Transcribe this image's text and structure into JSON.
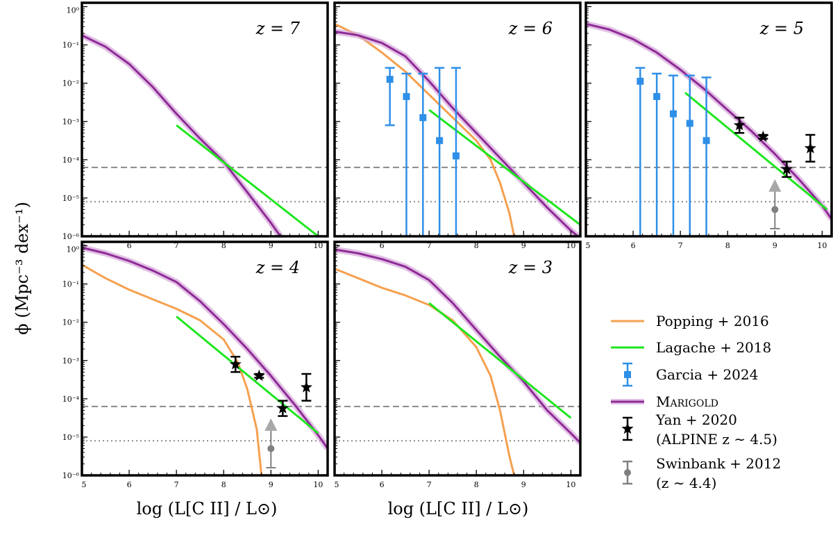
{
  "figure": {
    "ylabel": "ϕ (Mpc⁻³ dex⁻¹)",
    "xlabel": "log (L[C II] / L⊙)"
  },
  "legend": [
    {
      "key": "popping",
      "label": "Popping + 2016",
      "style": "line",
      "color": "#F5A04F"
    },
    {
      "key": "lagache",
      "label": "Lagache + 2018",
      "style": "line",
      "color": "#1EE61E"
    },
    {
      "key": "garcia",
      "label": "Garcia + 2024",
      "style": "errsquare",
      "color": "#2E8FE8"
    },
    {
      "key": "marigold",
      "label": "Marigold",
      "style": "line",
      "color": "#8E2A96"
    },
    {
      "key": "yan",
      "label": "Yan + 2020",
      "label2": "(ALPINE z ∼ 4.5)",
      "style": "errstar",
      "color": "#000000"
    },
    {
      "key": "swinbank",
      "label": "Swinbank + 2012",
      "label2": "(z ∼ 4.4)",
      "style": "errcircle",
      "color": "#808080"
    }
  ],
  "chart_data": [
    {
      "type": "line",
      "panel": "z7",
      "zlabel": "z = 7",
      "xlim": [
        5,
        10.2
      ],
      "ylim_log10": [
        -6,
        0.1
      ],
      "xticks": [
        "5",
        "6",
        "7",
        "8",
        "9",
        "10"
      ],
      "yticks": [
        "10⁻⁶",
        "10⁻⁵",
        "10⁻⁴",
        "10⁻³",
        "10⁻²",
        "10⁻¹",
        "10⁰"
      ],
      "hline_dashed": 6.3e-05,
      "hline_dotted": 8e-06,
      "series": [
        {
          "name": "Marigold",
          "x": [
            5.0,
            5.5,
            6.0,
            6.5,
            7.0,
            7.5,
            8.0,
            8.5,
            9.0,
            9.2
          ],
          "log10_y": [
            -0.75,
            -1.05,
            -1.5,
            -2.1,
            -2.8,
            -3.45,
            -4.05,
            -4.85,
            -5.65,
            -6.0
          ]
        },
        {
          "name": "Lagache + 2018",
          "x": [
            7.0,
            10.0
          ],
          "log10_y": [
            -3.1,
            -6.0
          ]
        }
      ],
      "points": []
    },
    {
      "type": "line",
      "panel": "z6",
      "zlabel": "z = 6",
      "xlim": [
        5,
        10.2
      ],
      "ylim_log10": [
        -6,
        0.1
      ],
      "xticks": [
        "5",
        "6",
        "7",
        "8",
        "9",
        "10"
      ],
      "yticks": [],
      "hline_dashed": 6.3e-05,
      "hline_dotted": 8e-06,
      "series": [
        {
          "name": "Popping + 2016",
          "x": [
            5.0,
            5.5,
            6.0,
            6.5,
            7.0,
            7.5,
            8.0,
            8.3,
            8.5,
            8.7,
            8.8
          ],
          "log10_y": [
            -0.45,
            -0.75,
            -1.2,
            -1.7,
            -2.3,
            -2.9,
            -3.5,
            -4.0,
            -4.6,
            -5.4,
            -6.0
          ]
        },
        {
          "name": "Marigold",
          "x": [
            5.0,
            5.5,
            6.0,
            6.5,
            7.0,
            7.5,
            8.0,
            8.5,
            9.0,
            9.5,
            10.0,
            10.2
          ],
          "log10_y": [
            -0.65,
            -0.75,
            -0.95,
            -1.3,
            -1.95,
            -2.65,
            -3.3,
            -3.95,
            -4.6,
            -5.25,
            -5.85,
            -6.05
          ]
        },
        {
          "name": "Lagache + 2018",
          "x": [
            7.0,
            10.2
          ],
          "log10_y": [
            -2.7,
            -5.7
          ]
        }
      ],
      "points": [
        {
          "name": "Garcia + 2024",
          "marker": "square",
          "x": 6.17,
          "log10_y": -1.9,
          "lo": -3.1,
          "hi": -1.6
        },
        {
          "name": "Garcia + 2024",
          "marker": "square",
          "x": 6.52,
          "log10_y": -2.35,
          "lo": -6.0,
          "hi": -1.75
        },
        {
          "name": "Garcia + 2024",
          "marker": "square",
          "x": 6.87,
          "log10_y": -2.9,
          "lo": -6.0,
          "hi": -1.75
        },
        {
          "name": "Garcia + 2024",
          "marker": "square",
          "x": 7.22,
          "log10_y": -3.5,
          "lo": -6.0,
          "hi": -1.6
        },
        {
          "name": "Garcia + 2024",
          "marker": "square",
          "x": 7.57,
          "log10_y": -3.9,
          "lo": -6.0,
          "hi": -1.6
        }
      ]
    },
    {
      "type": "line",
      "panel": "z5",
      "zlabel": "z = 5",
      "xlim": [
        5,
        10.2
      ],
      "ylim_log10": [
        -6,
        0.1
      ],
      "xticks": [
        "5",
        "6",
        "7",
        "8",
        "9",
        "10"
      ],
      "yticks": [],
      "hline_dashed": 6.3e-05,
      "hline_dotted": 8e-06,
      "series": [
        {
          "name": "Marigold",
          "x": [
            5.0,
            5.5,
            6.0,
            6.5,
            7.0,
            7.5,
            8.0,
            8.5,
            9.0,
            9.5,
            10.0,
            10.2
          ],
          "log10_y": [
            -0.45,
            -0.6,
            -0.85,
            -1.2,
            -1.65,
            -2.15,
            -2.7,
            -3.25,
            -3.85,
            -4.5,
            -5.2,
            -5.55
          ]
        },
        {
          "name": "Lagache + 2018",
          "x": [
            7.1,
            10.1
          ],
          "log10_y": [
            -2.25,
            -5.3
          ]
        }
      ],
      "points": [
        {
          "name": "Garcia + 2024",
          "marker": "square",
          "x": 6.15,
          "log10_y": -1.95,
          "lo": -6.0,
          "hi": -1.6
        },
        {
          "name": "Garcia + 2024",
          "marker": "square",
          "x": 6.5,
          "log10_y": -2.35,
          "lo": -6.0,
          "hi": -1.75
        },
        {
          "name": "Garcia + 2024",
          "marker": "square",
          "x": 6.85,
          "log10_y": -2.8,
          "lo": -6.0,
          "hi": -1.8
        },
        {
          "name": "Garcia + 2024",
          "marker": "square",
          "x": 7.2,
          "log10_y": -3.05,
          "lo": -6.0,
          "hi": -1.8
        },
        {
          "name": "Garcia + 2024",
          "marker": "square",
          "x": 7.55,
          "log10_y": -3.5,
          "lo": -6.0,
          "hi": -1.85
        },
        {
          "name": "Yan + 2020",
          "marker": "star",
          "x": 8.25,
          "log10_y": -3.1,
          "lo": -3.3,
          "hi": -2.9
        },
        {
          "name": "Yan + 2020",
          "marker": "star",
          "x": 8.75,
          "log10_y": -3.4,
          "lo": -3.45,
          "hi": -3.35
        },
        {
          "name": "Yan + 2020",
          "marker": "star",
          "x": 9.25,
          "log10_y": -4.25,
          "lo": -4.45,
          "hi": -4.05
        },
        {
          "name": "Yan + 2020",
          "marker": "star",
          "x": 9.75,
          "log10_y": -3.7,
          "lo": -4.05,
          "hi": -3.35
        },
        {
          "name": "Swinbank + 2012",
          "marker": "circle",
          "x": 9.0,
          "log10_y": -5.3,
          "lo": -5.8,
          "hi": -4.8,
          "lower_limit": true
        }
      ]
    },
    {
      "type": "line",
      "panel": "z4",
      "zlabel": "z = 4",
      "xlim": [
        5,
        10.2
      ],
      "ylim_log10": [
        -6,
        0.1
      ],
      "xticks": [
        "5",
        "6",
        "7",
        "8",
        "9",
        "10"
      ],
      "yticks": [
        "10⁻⁶",
        "10⁻⁵",
        "10⁻⁴",
        "10⁻³",
        "10⁻²",
        "10⁻¹",
        "10⁰"
      ],
      "hline_dashed": 6.3e-05,
      "hline_dotted": 8e-06,
      "series": [
        {
          "name": "Popping + 2016",
          "x": [
            5.0,
            5.5,
            6.0,
            6.5,
            7.0,
            7.5,
            8.0,
            8.3,
            8.5,
            8.7,
            8.8
          ],
          "log10_y": [
            -0.5,
            -0.85,
            -1.15,
            -1.4,
            -1.65,
            -1.95,
            -2.45,
            -3.05,
            -3.75,
            -4.8,
            -6.0
          ]
        },
        {
          "name": "Marigold",
          "x": [
            5.0,
            5.5,
            6.0,
            6.5,
            7.0,
            7.5,
            8.0,
            8.5,
            9.0,
            9.5,
            10.0,
            10.2
          ],
          "log10_y": [
            -0.05,
            -0.2,
            -0.4,
            -0.65,
            -0.95,
            -1.45,
            -2.05,
            -2.7,
            -3.4,
            -4.15,
            -4.95,
            -5.3
          ]
        },
        {
          "name": "Lagache + 2018",
          "x": [
            7.0,
            10.0
          ],
          "log10_y": [
            -1.85,
            -4.9
          ]
        }
      ],
      "points": [
        {
          "name": "Yan + 2020",
          "marker": "star",
          "x": 8.25,
          "log10_y": -3.1,
          "lo": -3.3,
          "hi": -2.9
        },
        {
          "name": "Yan + 2020",
          "marker": "star",
          "x": 8.75,
          "log10_y": -3.4,
          "lo": -3.45,
          "hi": -3.35
        },
        {
          "name": "Yan + 2020",
          "marker": "star",
          "x": 9.25,
          "log10_y": -4.25,
          "lo": -4.45,
          "hi": -4.05
        },
        {
          "name": "Yan + 2020",
          "marker": "star",
          "x": 9.75,
          "log10_y": -3.7,
          "lo": -4.05,
          "hi": -3.35
        },
        {
          "name": "Swinbank + 2012",
          "marker": "circle",
          "x": 9.0,
          "log10_y": -5.3,
          "lo": -5.8,
          "hi": -4.8,
          "lower_limit": true
        }
      ]
    },
    {
      "type": "line",
      "panel": "z3",
      "zlabel": "z = 3",
      "xlim": [
        5,
        10.2
      ],
      "ylim_log10": [
        -6,
        0.1
      ],
      "xticks": [
        "5",
        "6",
        "7",
        "8",
        "9",
        "10"
      ],
      "yticks": [],
      "hline_dashed": 6.3e-05,
      "hline_dotted": 8e-06,
      "series": [
        {
          "name": "Popping + 2016",
          "x": [
            5.0,
            5.5,
            6.0,
            6.5,
            7.0,
            7.5,
            8.0,
            8.3,
            8.5,
            8.7,
            8.8
          ],
          "log10_y": [
            -0.6,
            -0.85,
            -1.1,
            -1.3,
            -1.55,
            -1.95,
            -2.65,
            -3.4,
            -4.3,
            -5.5,
            -6.0
          ]
        },
        {
          "name": "Marigold",
          "x": [
            5.0,
            5.5,
            6.0,
            6.5,
            7.0,
            7.5,
            8.0,
            8.5,
            9.0,
            9.5,
            10.0,
            10.2
          ],
          "log10_y": [
            -0.1,
            -0.2,
            -0.35,
            -0.55,
            -0.9,
            -1.5,
            -2.2,
            -2.9,
            -3.55,
            -4.3,
            -4.9,
            -5.15
          ]
        },
        {
          "name": "Lagache + 2018",
          "x": [
            7.0,
            10.0
          ],
          "log10_y": [
            -1.5,
            -4.5
          ]
        }
      ],
      "points": []
    }
  ]
}
